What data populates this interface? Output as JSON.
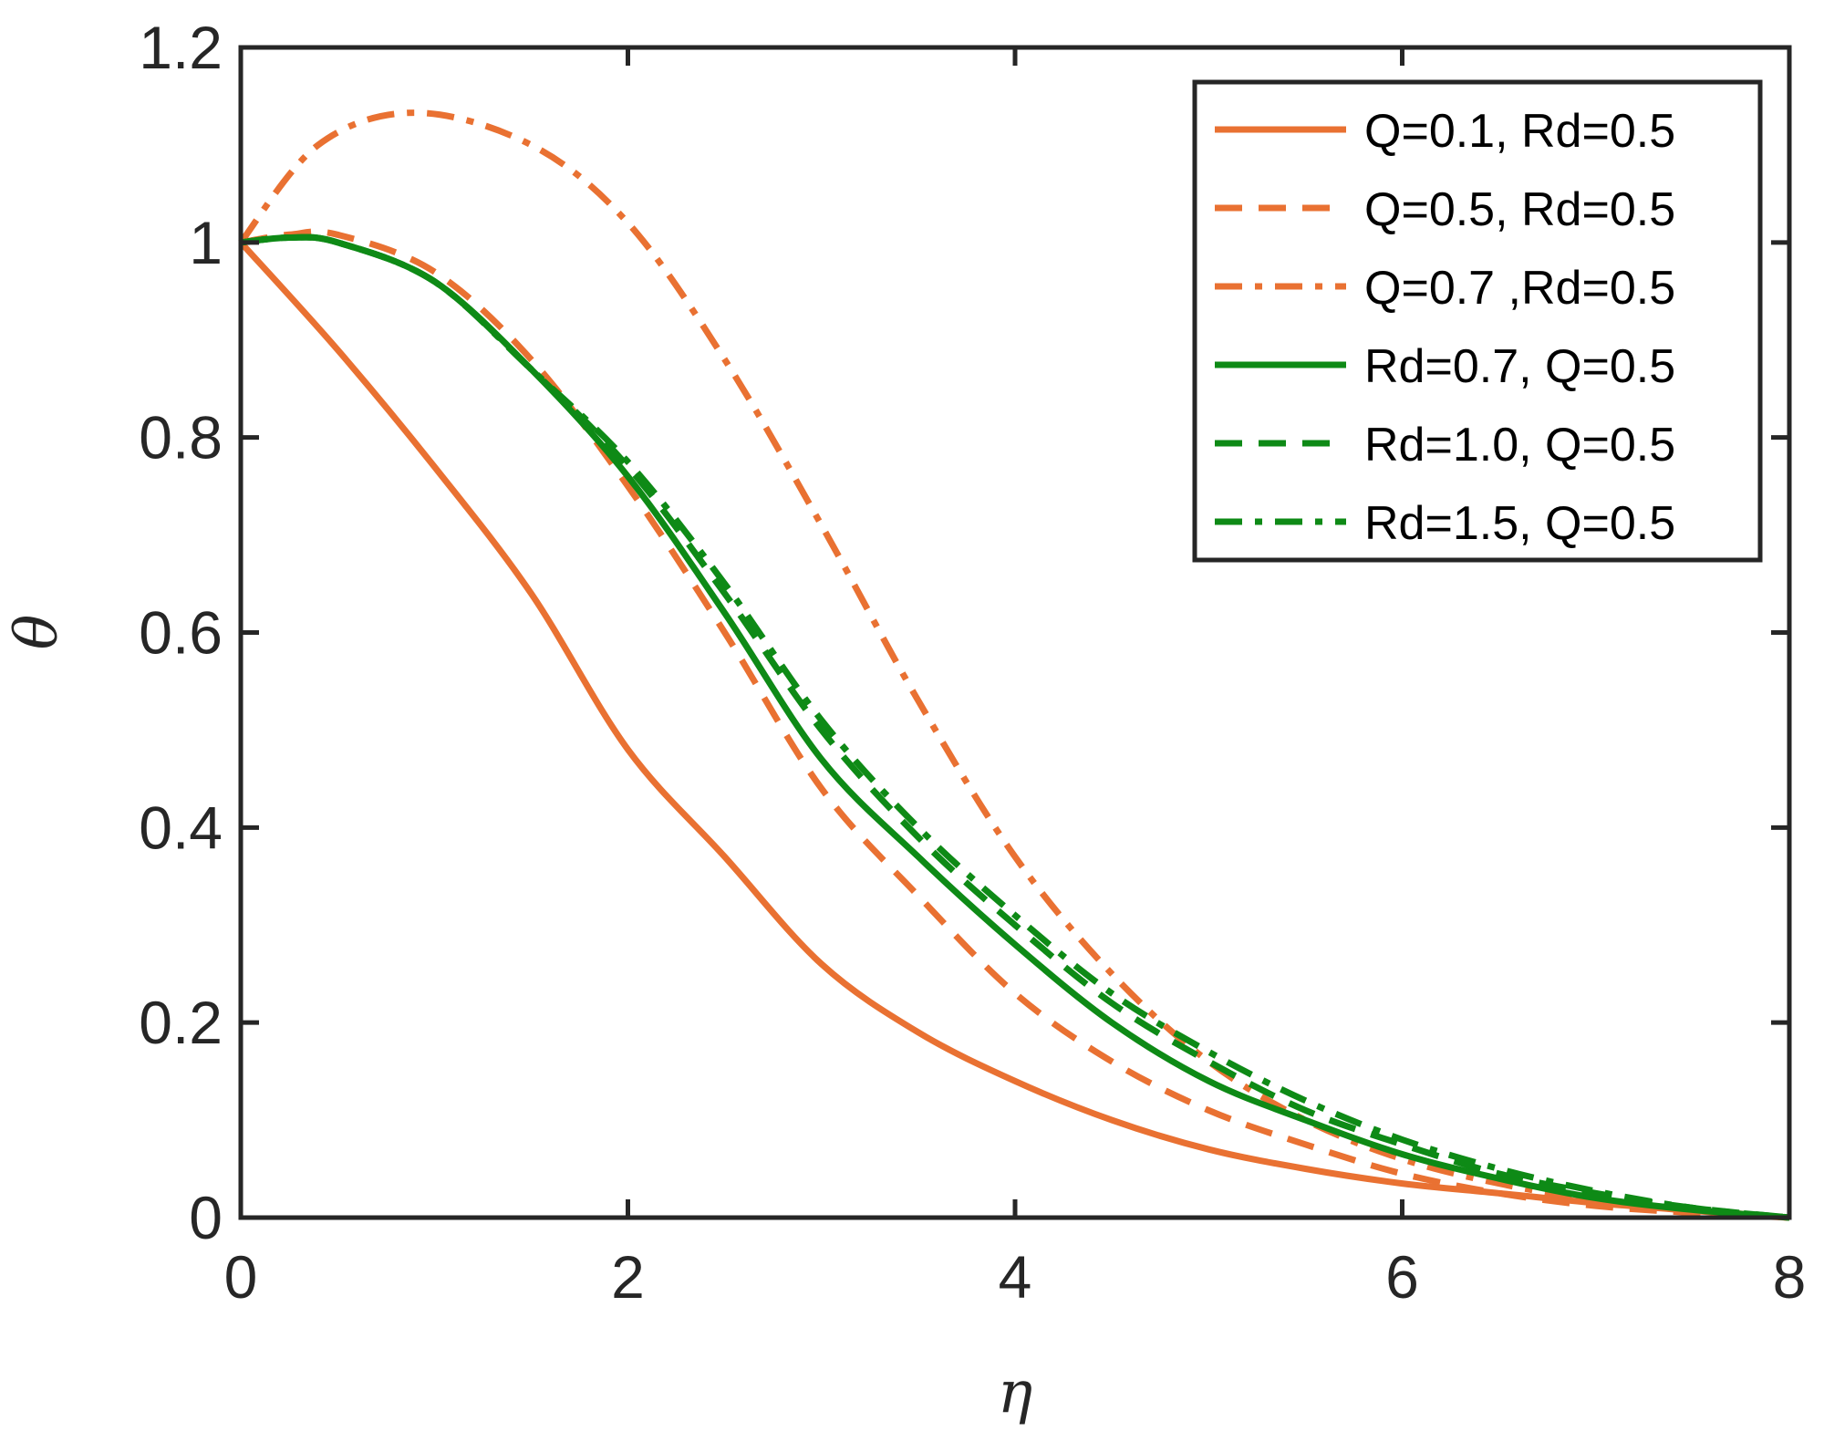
{
  "chart_data": {
    "type": "line",
    "title": "",
    "xlabel": "η",
    "ylabel": "θ",
    "xlim": [
      0,
      8
    ],
    "ylim": [
      0,
      1.2
    ],
    "xticks": [
      0,
      2,
      4,
      6,
      8
    ],
    "xtick_labels": [
      "0",
      "2",
      "4",
      "6",
      "8"
    ],
    "yticks": [
      0,
      0.2,
      0.4,
      0.6,
      0.8,
      1,
      1.2
    ],
    "ytick_labels": [
      "0",
      "0.2",
      "0.4",
      "0.6",
      "0.8",
      "1",
      "1.2"
    ],
    "grid": false,
    "legend_position": "top-right",
    "series": [
      {
        "name": "Q=0.1, Rd=0.5",
        "color": "#E97132",
        "dash": "solid",
        "x": [
          0,
          0.5,
          1,
          1.5,
          2,
          2.5,
          3,
          3.5,
          4,
          4.5,
          5,
          5.5,
          6,
          6.5,
          7,
          7.5,
          8
        ],
        "y": [
          1.0,
          0.89,
          0.77,
          0.64,
          0.48,
          0.37,
          0.26,
          0.19,
          0.14,
          0.1,
          0.07,
          0.05,
          0.035,
          0.025,
          0.015,
          0.007,
          0.0
        ]
      },
      {
        "name": "Q=0.5, Rd=0.5",
        "color": "#E97132",
        "dash": "dashed",
        "x": [
          0,
          0.25,
          0.5,
          1,
          1.5,
          2,
          2.5,
          3,
          3.5,
          4,
          4.5,
          5,
          5.5,
          6,
          6.5,
          7,
          7.5,
          8
        ],
        "y": [
          1.0,
          1.008,
          1.008,
          0.97,
          0.88,
          0.75,
          0.6,
          0.44,
          0.33,
          0.23,
          0.16,
          0.11,
          0.075,
          0.045,
          0.025,
          0.012,
          0.005,
          0.0
        ]
      },
      {
        "name": "Q=0.7 ,Rd=0.5",
        "color": "#E97132",
        "dash": "dashdot",
        "x": [
          0,
          0.4,
          0.9,
          1.5,
          2,
          2.5,
          3,
          3.5,
          4,
          4.5,
          5,
          5.5,
          6,
          6.5,
          7,
          7.5,
          8
        ],
        "y": [
          1.0,
          1.1,
          1.133,
          1.1,
          1.02,
          0.88,
          0.71,
          0.53,
          0.37,
          0.25,
          0.16,
          0.1,
          0.06,
          0.035,
          0.018,
          0.008,
          0.0
        ]
      },
      {
        "name": "Rd=0.7, Q=0.5",
        "color": "#0E8A16",
        "dash": "solid",
        "x": [
          0,
          0.25,
          0.5,
          1,
          1.5,
          2,
          2.5,
          3,
          3.5,
          4,
          4.5,
          5,
          5.5,
          6,
          6.5,
          7,
          7.5,
          8
        ],
        "y": [
          1.0,
          1.005,
          1.0,
          0.96,
          0.87,
          0.76,
          0.62,
          0.47,
          0.37,
          0.28,
          0.2,
          0.14,
          0.1,
          0.065,
          0.04,
          0.02,
          0.008,
          0.0
        ]
      },
      {
        "name": "Rd=1.0, Q=0.5",
        "color": "#0E8A16",
        "dash": "dashed",
        "x": [
          0,
          0.25,
          0.5,
          1,
          1.5,
          2,
          2.5,
          3,
          3.5,
          4,
          4.5,
          5,
          5.5,
          6,
          6.5,
          7,
          7.5,
          8
        ],
        "y": [
          1.0,
          1.005,
          1.0,
          0.96,
          0.87,
          0.77,
          0.64,
          0.5,
          0.39,
          0.3,
          0.22,
          0.16,
          0.11,
          0.075,
          0.045,
          0.025,
          0.01,
          0.0
        ]
      },
      {
        "name": "Rd=1.5, Q=0.5",
        "color": "#0E8A16",
        "dash": "dashdot",
        "x": [
          0,
          0.25,
          0.5,
          1,
          1.5,
          2,
          2.5,
          3,
          3.5,
          4,
          4.5,
          5,
          5.5,
          6,
          6.5,
          7,
          7.5,
          8
        ],
        "y": [
          1.0,
          1.005,
          1.0,
          0.96,
          0.87,
          0.775,
          0.65,
          0.51,
          0.4,
          0.31,
          0.23,
          0.17,
          0.12,
          0.08,
          0.05,
          0.027,
          0.01,
          0.0
        ]
      }
    ]
  }
}
